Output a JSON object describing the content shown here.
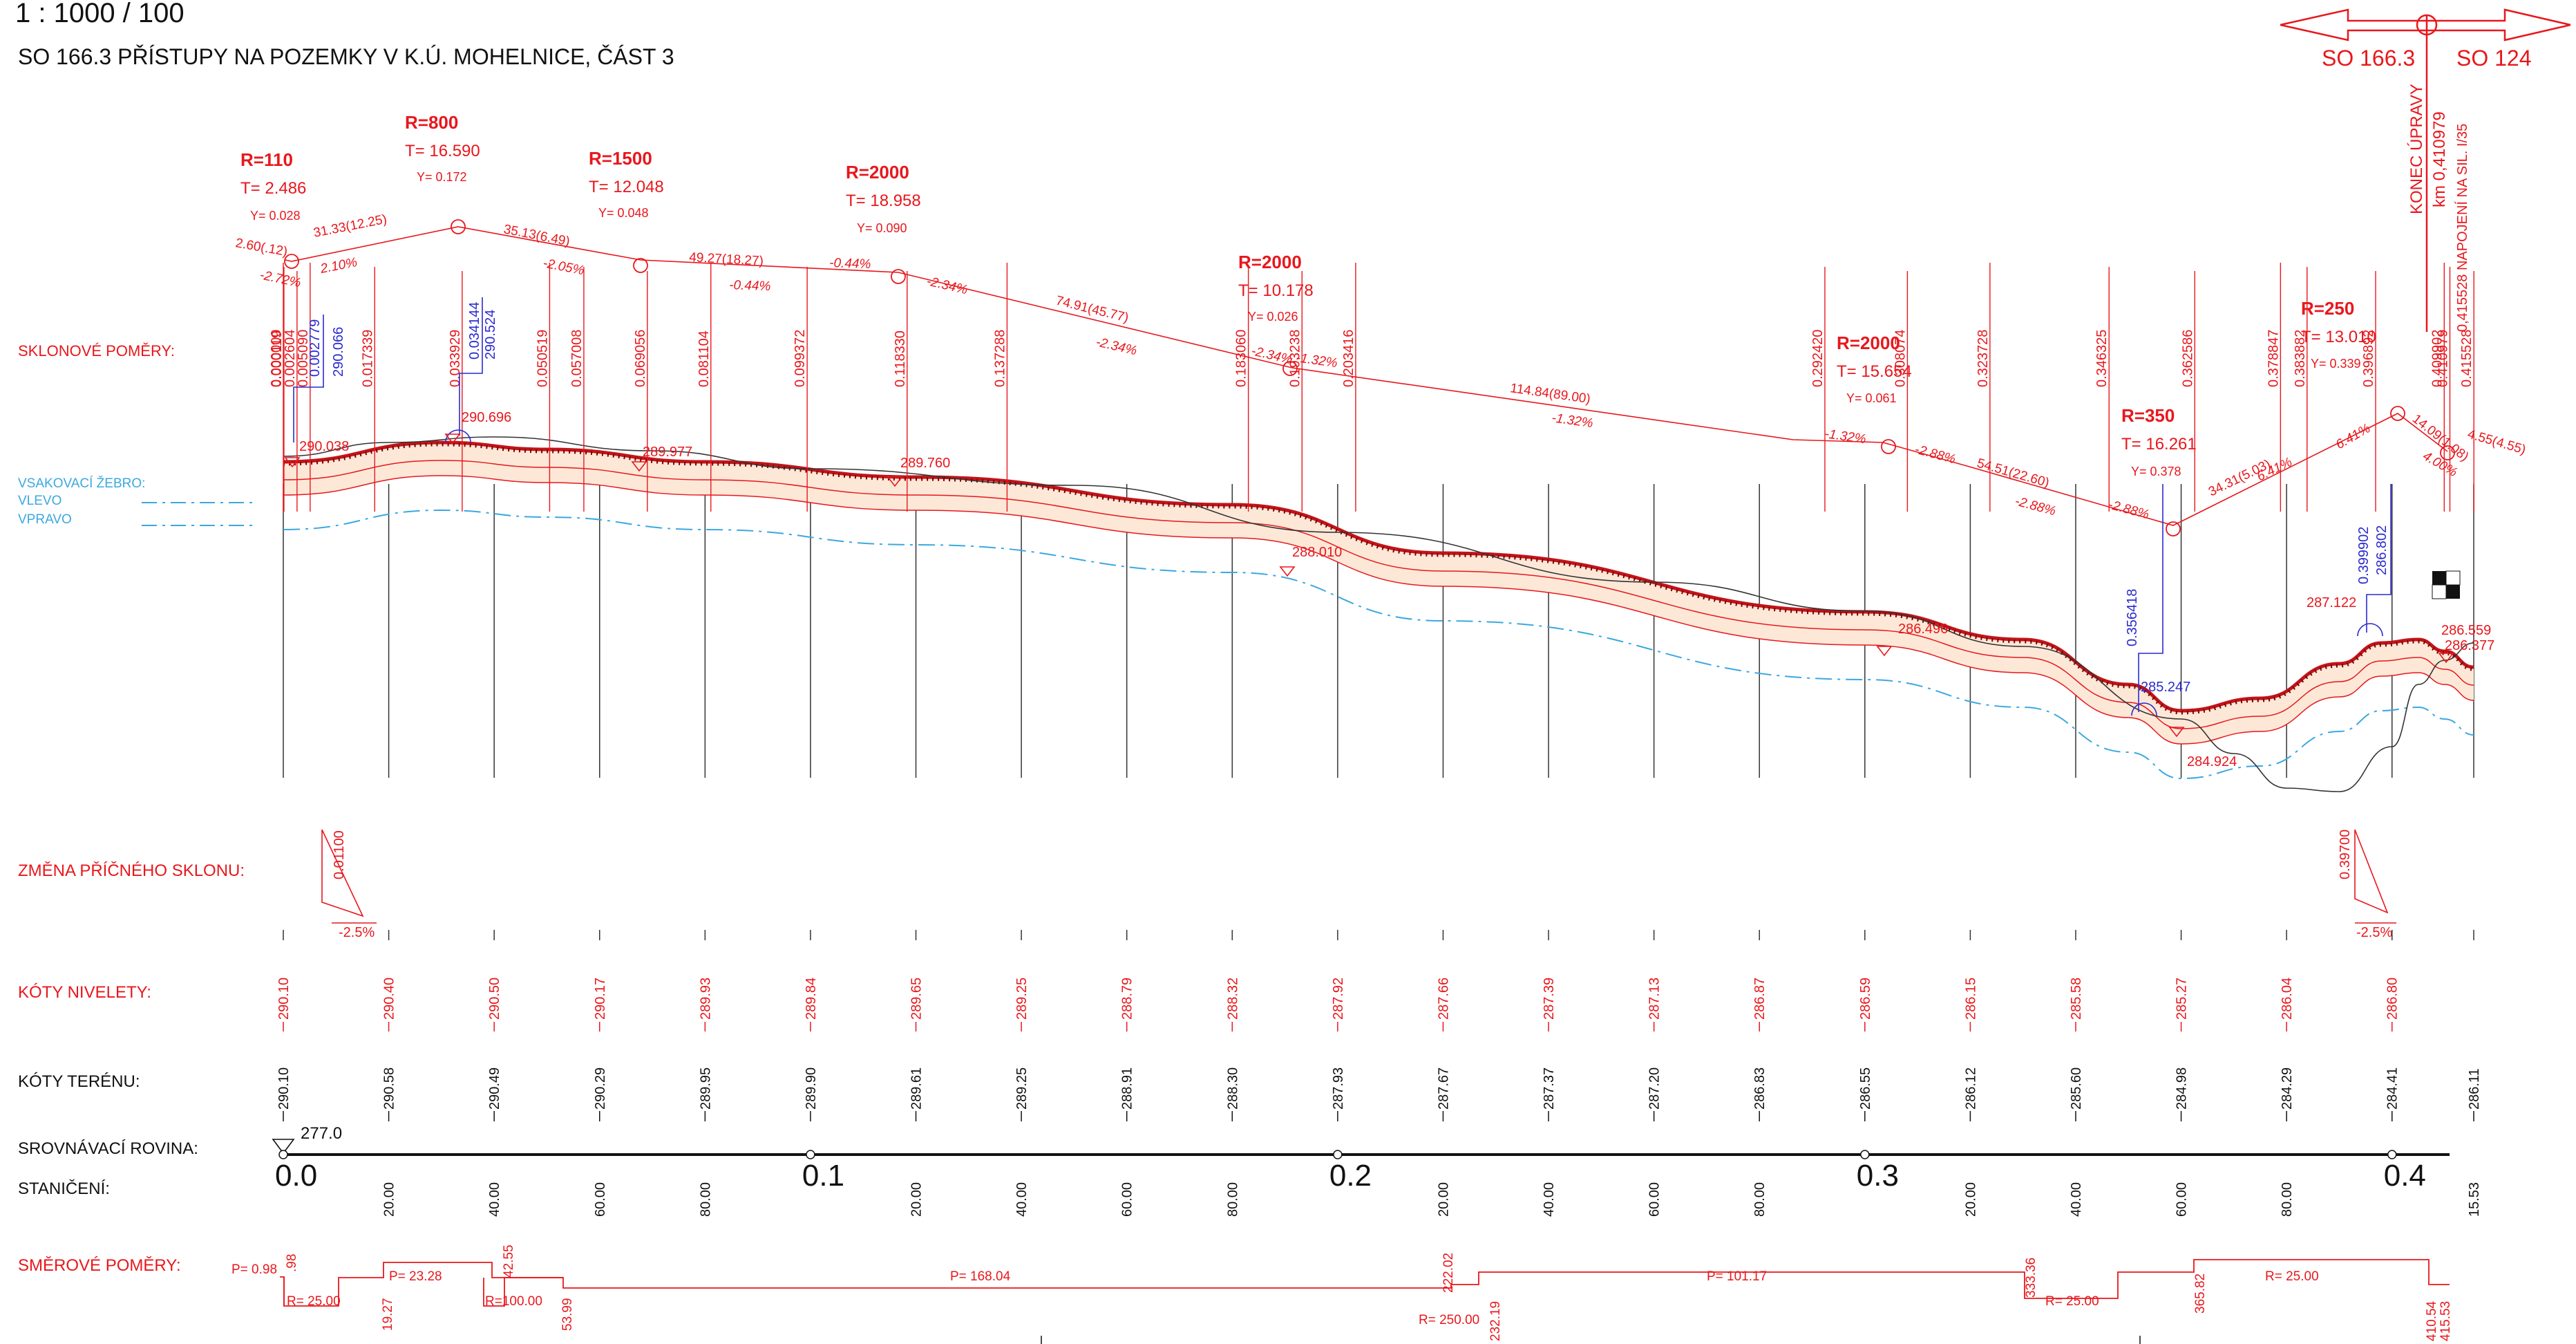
{
  "title": {
    "scale": "1 : 1000 / 100",
    "name": "SO 166.3  PŘÍSTUPY NA POZEMKY V K.Ú. MOHELNICE, ČÁST 3"
  },
  "objects": {
    "left": "SO 166.3",
    "right": "SO 124"
  },
  "end_note": {
    "line1": "KONEC ÚPRAVY",
    "line2": "km 0,410979",
    "line3": "0,415528 NAPOJENÍ NA SIL. I/35"
  },
  "row_labels": {
    "slopes": "SKLONOVÉ POMĚRY:",
    "drain": "VSAKOVACÍ ŽEBRO:",
    "drain_left": "VLEVO",
    "drain_right": "VPRAVO",
    "cross_slope": "ZMĚNA PŘÍČNÉHO SKLONU:",
    "grade_levels": "KÓTY NIVELETY:",
    "terrain_levels": "KÓTY TERÉNU:",
    "datum": "SROVNÁVACÍ ROVINA:",
    "station": "STANIČENÍ:",
    "alignment": "SMĚROVÉ POMĚRY:"
  },
  "datum_value": "277.0",
  "colors": {
    "design": "#e8171c",
    "blue": "#2a2ad0",
    "drain": "#3ba8e0",
    "ground": "#222222"
  },
  "curves": [
    {
      "r": "R=110",
      "t": "T= 2.486",
      "y": "Y= 0.028"
    },
    {
      "r": "R=800",
      "t": "T= 16.590",
      "y": "Y= 0.172"
    },
    {
      "r": "R=1500",
      "t": "T= 12.048",
      "y": "Y= 0.048"
    },
    {
      "r": "R=2000",
      "t": "T= 18.958",
      "y": "Y= 0.090"
    },
    {
      "r": "R=2000",
      "t": "T= 10.178",
      "y": "Y= 0.026"
    },
    {
      "r": "R=2000",
      "t": "T= 15.654",
      "y": "Y= 0.061"
    },
    {
      "r": "R=350",
      "t": "T= 16.261",
      "y": "Y= 0.378"
    },
    {
      "r": "R=250",
      "t": "T= 13.010",
      "y": "Y= 0.339"
    }
  ],
  "tangent_labels": [
    "2.60(.12)",
    "31.33(12.25)",
    "35.13(6.49)",
    "49.27(18.27)",
    "74.91(45.77)",
    "114.84(89.00)",
    "54.51(22.60)",
    "34.31(5.03)",
    "14.09(1.08)",
    "4.55(4.55)"
  ],
  "grade_labels": [
    "-2.72%",
    "2.10%",
    "-2.05%",
    "-0.44%",
    "-0.44%",
    "-2.34%",
    "-2.34%",
    "-2.34%",
    "-1.32%",
    "-1.32%",
    "-1.32%",
    "-2.88%",
    "-2.88%",
    "-2.88%",
    "6.41%",
    "6.41%",
    "4.00%"
  ],
  "vertical_stations": [
    "0.000000",
    "0.000119",
    "0.002604",
    "0.005090",
    "0.017339",
    "0.033929",
    "0.050519",
    "0.057008",
    "0.069056",
    "0.081104",
    "0.099372",
    "0.118330",
    "0.137288",
    "0.183060",
    "0.193238",
    "0.203416",
    "0.292420",
    "0.308074",
    "0.323728",
    "0.346325",
    "0.362586",
    "0.378847",
    "0.383882",
    "0.396892",
    "0.409902",
    "0.410979",
    "0.415528"
  ],
  "blue_stations": [
    "0.002779",
    "290.066",
    "0.034144",
    "290.524",
    "0.356418",
    "0.399902",
    "286.802"
  ],
  "point_elevations": [
    "290.038",
    "290.696",
    "289.977",
    "289.760",
    "288.010",
    "286.496",
    "285.247",
    "284.924",
    "287.122",
    "286.559",
    "286.377"
  ],
  "cross_slope": [
    {
      "station": "0.01100",
      "value": "-2.5%"
    },
    {
      "station": "0.39700",
      "value": "-2.5%"
    }
  ],
  "grade_levels": [
    "290.10",
    "290.40",
    "290.50",
    "290.17",
    "289.93",
    "289.84",
    "289.65",
    "289.25",
    "288.79",
    "288.32",
    "287.92",
    "287.66",
    "287.39",
    "287.13",
    "286.87",
    "286.59",
    "286.15",
    "285.58",
    "285.27",
    "286.04",
    "286.80"
  ],
  "terrain_levels": [
    "290.10",
    "290.58",
    "290.49",
    "290.29",
    "289.95",
    "289.90",
    "289.61",
    "289.25",
    "288.91",
    "288.30",
    "287.93",
    "287.67",
    "287.37",
    "287.20",
    "286.83",
    "286.55",
    "286.12",
    "285.60",
    "284.98",
    "284.29",
    "284.41",
    "286.11"
  ],
  "stations_major": [
    "0.0",
    "0.1",
    "0.2",
    "0.3",
    "0.4"
  ],
  "stations_minor": [
    "20.00",
    "40.00",
    "60.00",
    "80.00",
    "20.00",
    "40.00",
    "60.00",
    "80.00",
    "20.00",
    "40.00",
    "60.00",
    "80.00",
    "20.00",
    "40.00",
    "60.00",
    "80.00",
    "15.53"
  ],
  "alignment_labels": {
    "p1": "P= 0.98",
    "p1b": ".98",
    "r1": "R= 25.00",
    "r1b": "19.27",
    "p2": "P= 23.28",
    "r2": "R=100.00",
    "r2b": "42.55",
    "r2c": "53.99",
    "p3": "P= 168.04",
    "r3": "R= 250.00",
    "r3b": "222.02",
    "r3c": "232.19",
    "p4": "P= 101.17",
    "r4": "R= 25.00",
    "r4b": "333.36",
    "r4c": "365.82",
    "r5": "R= 25.00",
    "r5b": "410.54",
    "r5c": "415.53"
  }
}
